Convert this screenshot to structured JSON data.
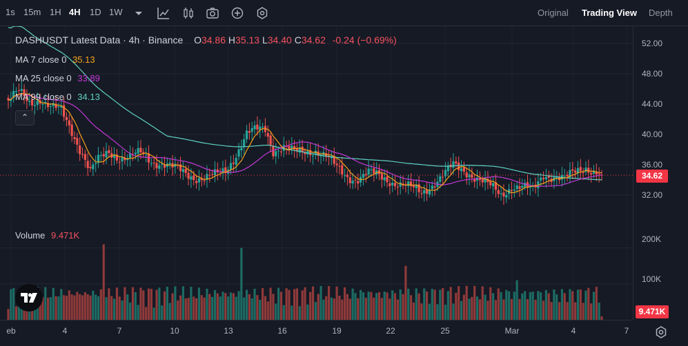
{
  "toolbar": {
    "timeframes": [
      "1s",
      "15m",
      "1H",
      "4H",
      "1D",
      "1W"
    ],
    "active_timeframe": "4H",
    "icons": [
      "chevron-down-icon",
      "indicator-chart-icon",
      "candles-icon",
      "camera-icon",
      "plus-circle-icon",
      "settings-icon"
    ],
    "views": [
      "Original",
      "Trading View",
      "Depth"
    ],
    "active_view": "Trading View"
  },
  "legend": {
    "title": "DASHUSDT Latest Data · 4h · Binance",
    "open_k": "O",
    "open_v": "34.86",
    "high_k": "H",
    "high_v": "35.13",
    "low_k": "L",
    "low_v": "34.40",
    "close_k": "C",
    "close_v": "34.62",
    "change": "-0.24 (−0.69%)",
    "ma7_label": "MA 7 close 0",
    "ma7_value": "35.13",
    "ma25_label": "MA 25 close 0",
    "ma25_value": "33.89",
    "ma99_label": "MA 99 close 0",
    "ma99_value": "34.13",
    "volume_label": "Volume",
    "volume_value": "9.471K"
  },
  "price_axis": [
    "52.00",
    "48.00",
    "44.00",
    "40.00",
    "36.00",
    "32.00"
  ],
  "volume_axis": [
    "200K",
    "100K"
  ],
  "last_price": "34.62",
  "last_volume": "9.471K",
  "time_axis": [
    "eb",
    "4",
    "7",
    "10",
    "13",
    "16",
    "19",
    "22",
    "25",
    "Mar",
    "4",
    "7"
  ],
  "colors": {
    "up": "#26a69a",
    "down": "#ef5350",
    "ma7": "#f7a21b",
    "ma25": "#c438d8",
    "ma99": "#5fd3c2",
    "price_tag": "#f23645"
  },
  "chart_data": {
    "type": "candlestick",
    "symbol": "DASHUSDT",
    "interval": "4h",
    "ylim": [
      30,
      54
    ],
    "volume_ylim": [
      0,
      230000
    ],
    "anchors_close": [
      [
        0,
        44.5
      ],
      [
        4,
        45.5
      ],
      [
        8,
        44.2
      ],
      [
        12,
        44.8
      ],
      [
        16,
        43.5
      ],
      [
        20,
        43.0
      ],
      [
        24,
        40.5
      ],
      [
        28,
        37.5
      ],
      [
        31,
        35.0
      ],
      [
        34,
        36.5
      ],
      [
        38,
        37.8
      ],
      [
        42,
        37.0
      ],
      [
        46,
        36.8
      ],
      [
        50,
        37.5
      ],
      [
        54,
        36.6
      ],
      [
        58,
        36.2
      ],
      [
        62,
        35.5
      ],
      [
        66,
        35.0
      ],
      [
        70,
        34.5
      ],
      [
        74,
        34.2
      ],
      [
        78,
        34.5
      ],
      [
        82,
        35.2
      ],
      [
        86,
        37.5
      ],
      [
        90,
        40.0
      ],
      [
        94,
        40.5
      ],
      [
        97,
        40.8
      ],
      [
        100,
        38.0
      ],
      [
        104,
        38.3
      ],
      [
        108,
        37.5
      ],
      [
        112,
        37.8
      ],
      [
        116,
        38.0
      ],
      [
        120,
        37.0
      ],
      [
        124,
        35.5
      ],
      [
        128,
        34.5
      ],
      [
        132,
        34.2
      ],
      [
        136,
        34.8
      ],
      [
        140,
        34.5
      ],
      [
        144,
        34.0
      ],
      [
        148,
        33.4
      ],
      [
        152,
        32.8
      ],
      [
        156,
        32.3
      ],
      [
        160,
        33.5
      ],
      [
        164,
        34.5
      ],
      [
        168,
        35.8
      ],
      [
        170,
        35.5
      ],
      [
        174,
        35.0
      ],
      [
        178,
        34.0
      ],
      [
        182,
        33.0
      ],
      [
        186,
        32.0
      ],
      [
        190,
        33.3
      ],
      [
        194,
        33.0
      ],
      [
        198,
        32.5
      ],
      [
        202,
        34.8
      ],
      [
        206,
        34.5
      ],
      [
        210,
        34.0
      ],
      [
        214,
        35.0
      ],
      [
        218,
        35.8
      ],
      [
        221,
        35.2
      ],
      [
        224,
        34.62
      ]
    ],
    "volume_spikes": [
      [
        36,
        210000
      ],
      [
        88,
        200000
      ],
      [
        150,
        150000
      ],
      [
        192,
        110000
      ]
    ]
  }
}
